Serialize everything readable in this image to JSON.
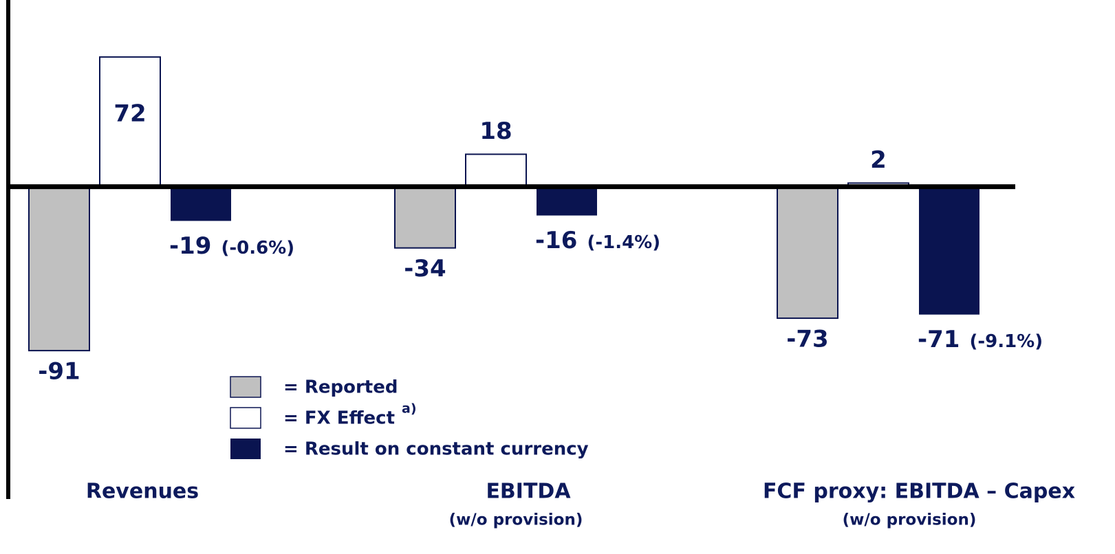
{
  "chart_data": {
    "type": "bar",
    "categories": [
      "Revenues",
      "EBITDA",
      "FCF proxy: EBITDA – Capex"
    ],
    "category_notes": [
      null,
      "(w/o provision)",
      "(w/o provision)"
    ],
    "series": [
      {
        "name": "= Reported",
        "color": "#c0c0c0",
        "values": [
          -91,
          -34,
          -73
        ]
      },
      {
        "name": "= FX Effect",
        "superscript": "a)",
        "color": "#ffffff",
        "values": [
          72,
          18,
          2
        ]
      },
      {
        "name": "= Result on constant currency",
        "color": "#0a1450",
        "values": [
          -19,
          -16,
          -71
        ],
        "pct_labels": [
          "(-0.6%)",
          "(-1.4%)",
          "(-9.1%)"
        ]
      }
    ],
    "ylim": [
      -173,
      96
    ]
  }
}
